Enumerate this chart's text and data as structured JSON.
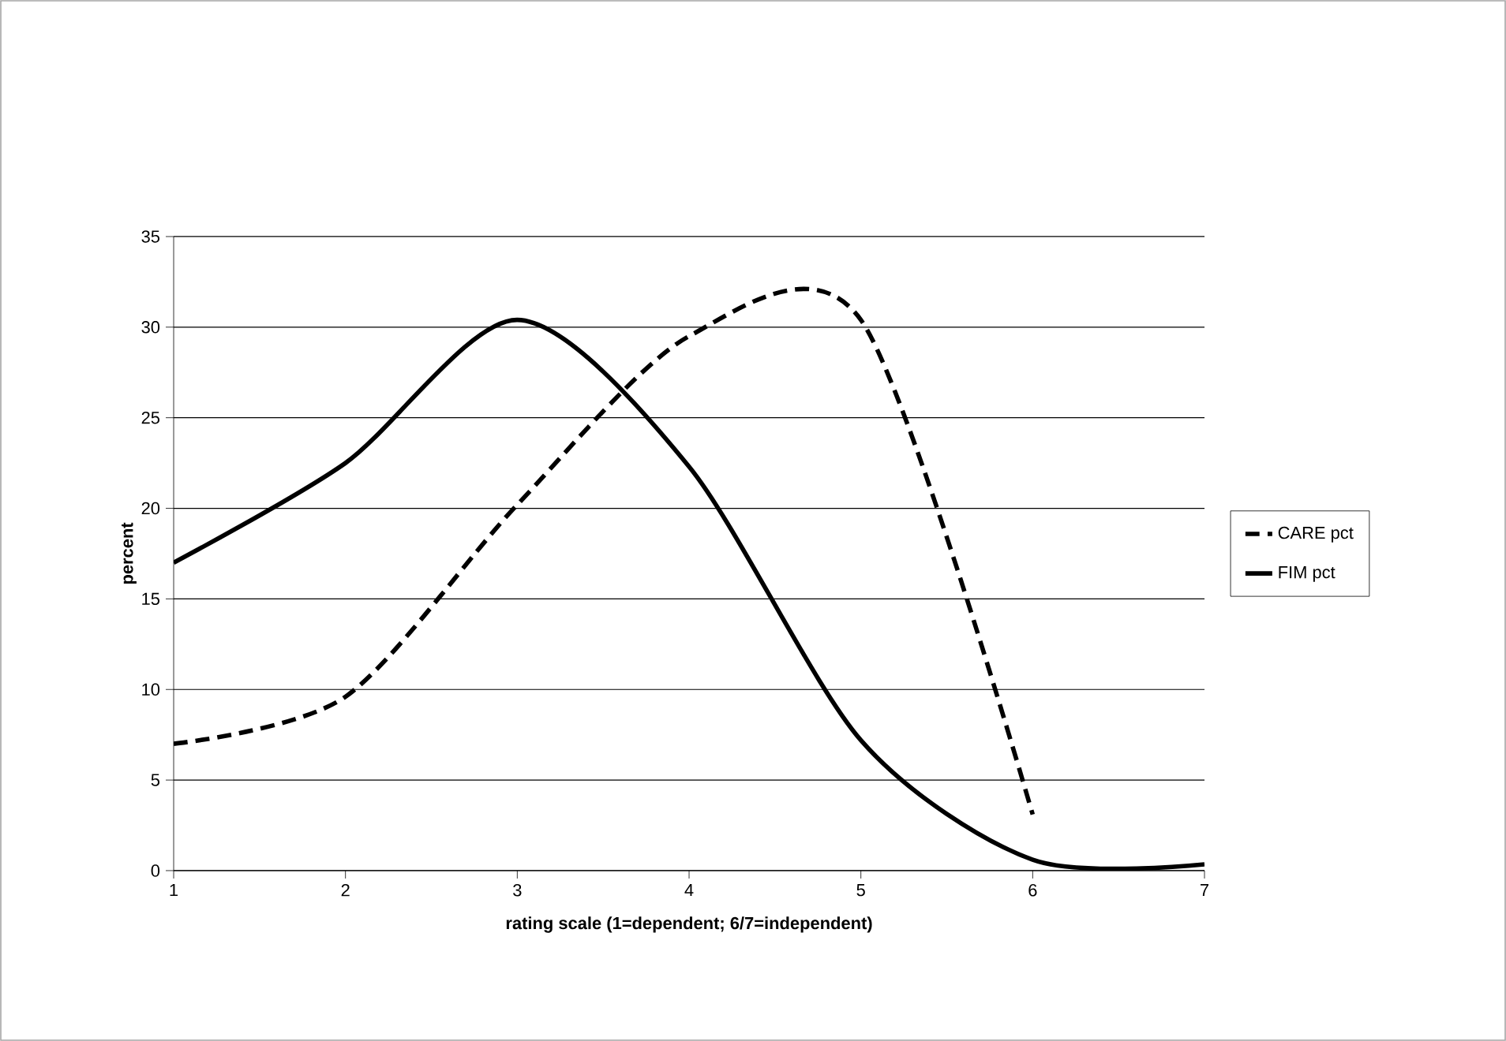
{
  "chart_data": {
    "type": "line",
    "xlabel": "rating scale (1=dependent; 6/7=independent)",
    "ylabel": "percent",
    "xlim": [
      1,
      7
    ],
    "xticks": [
      1,
      2,
      3,
      4,
      5,
      6,
      7
    ],
    "ylim": [
      0,
      35
    ],
    "yticks": [
      0,
      5,
      10,
      15,
      20,
      25,
      30,
      35
    ],
    "grid": "y",
    "legend": "right",
    "marker": "none",
    "series": [
      {
        "name": "CARE pct",
        "color": "#000000",
        "line_style": "dashed",
        "x": [
          1,
          2,
          3,
          4,
          5,
          6
        ],
        "values": [
          7.0,
          9.6,
          20.2,
          29.5,
          30.4,
          3.1
        ]
      },
      {
        "name": "FIM pct",
        "color": "#000000",
        "line_style": "solid",
        "x": [
          1,
          2,
          3,
          4,
          5,
          6,
          7
        ],
        "values": [
          17.0,
          22.5,
          30.4,
          22.3,
          7.2,
          0.6,
          0.35
        ]
      }
    ]
  }
}
